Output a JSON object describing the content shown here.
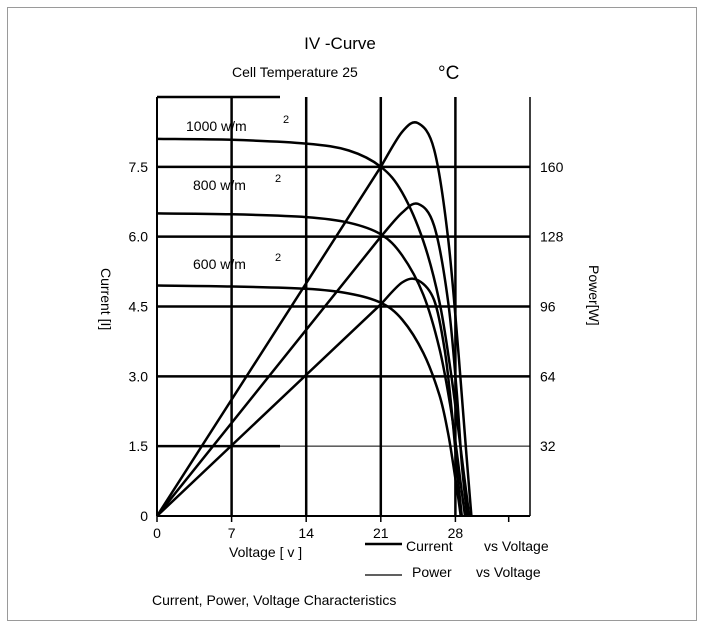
{
  "chart_data": {
    "type": "line",
    "title": "IV -Curve",
    "subtitle_prefix": "Cell Temperature 25",
    "subtitle_unit": "°C",
    "xlabel": "Voltage [ v ]",
    "ylabel_left": "Current [I]",
    "ylabel_right": "Power[W]",
    "xlim": [
      0,
      35
    ],
    "ylim_left": [
      0,
      9.0
    ],
    "ylim_right": [
      0,
      192
    ],
    "xticks": [
      "0",
      "7",
      "14",
      "21",
      "28"
    ],
    "yticks_left": [
      "0",
      "1.5",
      "3.0",
      "4.5",
      "6.0",
      "7.5"
    ],
    "yticks_right": [
      "32",
      "64",
      "96",
      "128",
      "160"
    ],
    "irradiance_labels": [
      "1000 w/m",
      "800 w/m",
      "600 w/m"
    ],
    "irradiance_sup": "2",
    "legend": [
      {
        "label": "Current",
        "suffix": "vs Voltage"
      },
      {
        "label": "Power",
        "suffix": "vs Voltage"
      }
    ],
    "caption": "Current, Power, Voltage Characteristics",
    "series": [
      {
        "name": "Current 1000",
        "kind": "current",
        "x": [
          0,
          7,
          14,
          18,
          21,
          23,
          25,
          26.5,
          27.5,
          28.2,
          28.8,
          29.3
        ],
        "y": [
          8.1,
          8.08,
          8.0,
          7.85,
          7.5,
          6.95,
          5.9,
          4.6,
          3.2,
          2.0,
          0.9,
          0
        ]
      },
      {
        "name": "Current 800",
        "kind": "current",
        "x": [
          0,
          7,
          14,
          18,
          21,
          23,
          25,
          26.5,
          27.5,
          28.0,
          28.5,
          28.9
        ],
        "y": [
          6.5,
          6.48,
          6.42,
          6.3,
          6.05,
          5.6,
          4.75,
          3.6,
          2.4,
          1.6,
          0.7,
          0
        ]
      },
      {
        "name": "Current 600",
        "kind": "current",
        "x": [
          0,
          7,
          14,
          18,
          21,
          23,
          25,
          26.5,
          27.3,
          27.8,
          28.2,
          28.5
        ],
        "y": [
          4.95,
          4.93,
          4.88,
          4.78,
          4.58,
          4.22,
          3.5,
          2.6,
          1.8,
          1.1,
          0.5,
          0
        ]
      },
      {
        "name": "Power 1000",
        "kind": "power",
        "x": [
          0,
          7,
          14,
          21,
          23,
          24.5,
          26,
          27.3,
          28.3,
          29.0,
          29.5
        ],
        "y": [
          0,
          55,
          110,
          160,
          176,
          180,
          168,
          128,
          74,
          30,
          0
        ]
      },
      {
        "name": "Power 800",
        "kind": "power",
        "x": [
          0,
          7,
          14,
          21,
          23,
          24.5,
          26,
          27.3,
          28.1,
          28.6,
          29.1
        ],
        "y": [
          0,
          44,
          88,
          128,
          139,
          143,
          133,
          99,
          58,
          24,
          0
        ]
      },
      {
        "name": "Power 600",
        "kind": "power",
        "x": [
          0,
          7,
          14,
          21,
          23,
          24.5,
          26,
          27.0,
          27.7,
          28.2,
          28.6
        ],
        "y": [
          0,
          33,
          66,
          97,
          107,
          108,
          99,
          76,
          46,
          19,
          0
        ]
      }
    ]
  }
}
